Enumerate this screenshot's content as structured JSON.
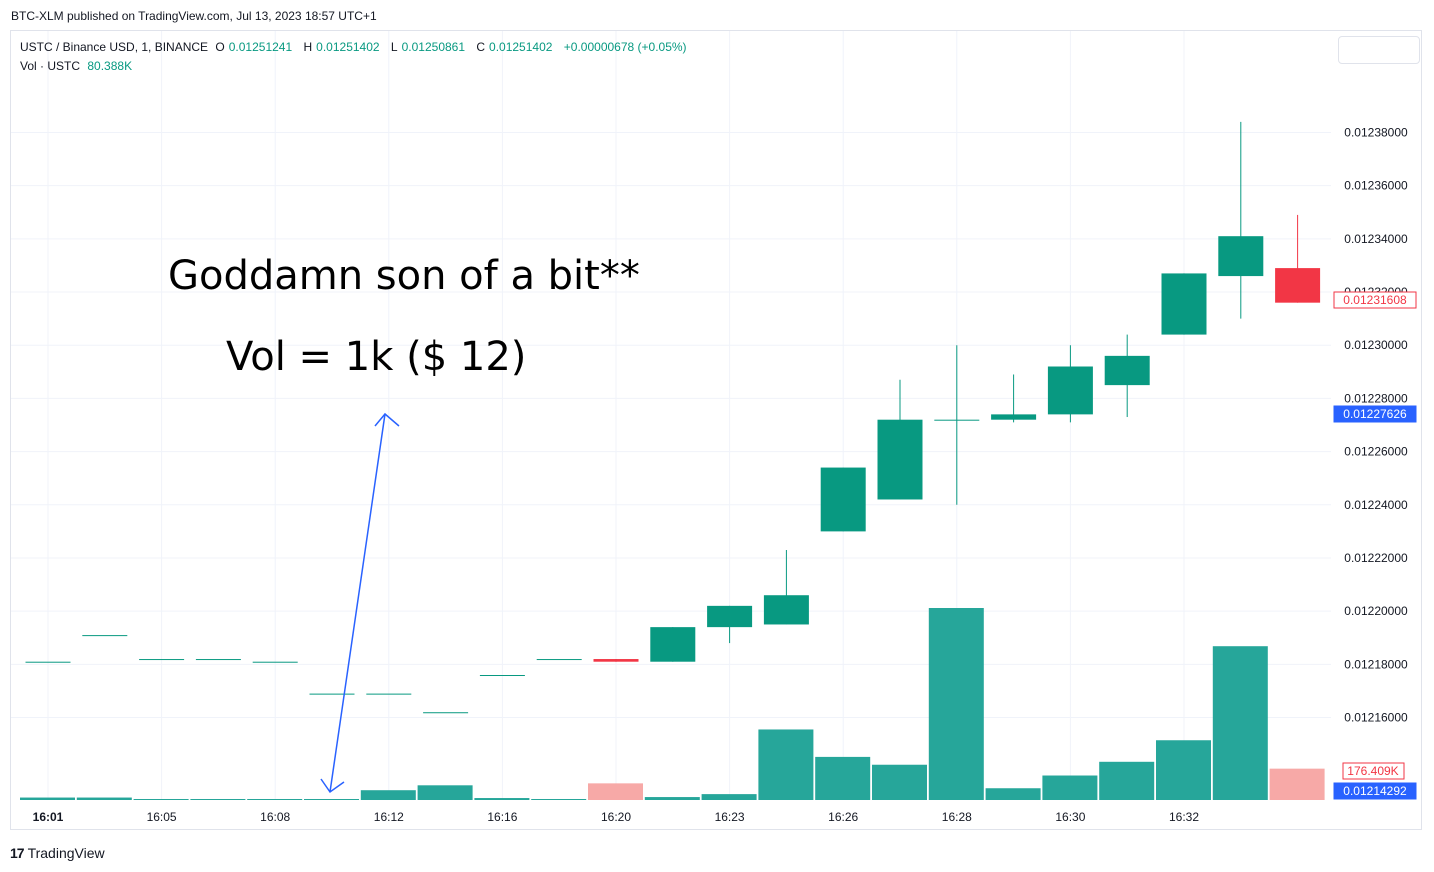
{
  "header": {
    "caption": "BTC-XLM published on TradingView.com, Jul 13, 2023 18:57 UTC+1"
  },
  "legend": {
    "symbol": "USTC / Binance USD, 1, BINANCE",
    "open_label": "O",
    "open": "0.01251241",
    "high_label": "H",
    "high": "0.01251402",
    "low_label": "L",
    "low": "0.01250861",
    "close_label": "C",
    "close": "0.01251402",
    "change": "+0.00000678 (+0.05%)",
    "vol_label": "Vol · USTC",
    "vol_value": "80.388K"
  },
  "annotation": {
    "line1": "Goddamn son of a bit**",
    "line2": "Vol = 1k ($ 12)"
  },
  "footer": {
    "logo": "17",
    "brand": "TradingView"
  },
  "colors": {
    "up": "#089981",
    "down": "#f23645",
    "vol_up": "#26a69a",
    "vol_down": "#f7a9a7",
    "badge_blue": "#2962ff",
    "arrow": "#2962ff",
    "grid": "#f0f3fa"
  },
  "chart_data": {
    "type": "candlestick",
    "y_range": [
      0.012129,
      0.012408
    ],
    "y_ticks": [
      "0.01238000",
      "0.01236000",
      "0.01234000",
      "0.01232000",
      "0.01230000",
      "0.01228000",
      "0.01226000",
      "0.01224000",
      "0.01222000",
      "0.01220000",
      "0.01218000",
      "0.01216000"
    ],
    "x_labels": [
      {
        "index": 0,
        "label": "16:01",
        "bold": true
      },
      {
        "index": 2,
        "label": "16:05"
      },
      {
        "index": 4,
        "label": "16:08"
      },
      {
        "index": 6,
        "label": "16:12"
      },
      {
        "index": 8,
        "label": "16:16"
      },
      {
        "index": 10,
        "label": "16:20"
      },
      {
        "index": 12,
        "label": "16:23"
      },
      {
        "index": 14,
        "label": "16:26"
      },
      {
        "index": 16,
        "label": "16:28"
      },
      {
        "index": 18,
        "label": "16:30"
      },
      {
        "index": 20,
        "label": "16:32"
      }
    ],
    "candles": [
      {
        "o": 0.012181,
        "h": 0.012181,
        "l": 0.012181,
        "c": 0.012181,
        "v": 2.5
      },
      {
        "o": 0.012191,
        "h": 0.012191,
        "l": 0.012191,
        "c": 0.012191,
        "v": 2.5
      },
      {
        "o": 0.012182,
        "h": 0.012182,
        "l": 0.012182,
        "c": 0.012182,
        "v": 0.5
      },
      {
        "o": 0.012182,
        "h": 0.012182,
        "l": 0.012182,
        "c": 0.012182,
        "v": 0.5
      },
      {
        "o": 0.012181,
        "h": 0.012181,
        "l": 0.012181,
        "c": 0.012181,
        "v": 1
      },
      {
        "o": 0.012169,
        "h": 0.012169,
        "l": 0.012169,
        "c": 0.012169,
        "v": 1
      },
      {
        "o": 0.012169,
        "h": 0.012169,
        "l": 0.012169,
        "c": 0.012169,
        "v": 10
      },
      {
        "o": 0.012162,
        "h": 0.012162,
        "l": 0.012162,
        "c": 0.012162,
        "v": 15
      },
      {
        "o": 0.012176,
        "h": 0.012176,
        "l": 0.012176,
        "c": 0.012176,
        "v": 2
      },
      {
        "o": 0.012182,
        "h": 0.012182,
        "l": 0.012182,
        "c": 0.012182,
        "v": 1
      },
      {
        "o": 0.012182,
        "h": 0.012182,
        "l": 0.012181,
        "c": 0.012181,
        "v": 17
      },
      {
        "o": 0.012181,
        "h": 0.012194,
        "l": 0.012181,
        "c": 0.012194,
        "v": 3
      },
      {
        "o": 0.012194,
        "h": 0.012202,
        "l": 0.012188,
        "c": 0.012202,
        "v": 6
      },
      {
        "o": 0.012195,
        "h": 0.012223,
        "l": 0.012195,
        "c": 0.012206,
        "v": 72
      },
      {
        "o": 0.01223,
        "h": 0.012254,
        "l": 0.01223,
        "c": 0.012254,
        "v": 44
      },
      {
        "o": 0.012242,
        "h": 0.012287,
        "l": 0.012242,
        "c": 0.012272,
        "v": 36
      },
      {
        "o": 0.012272,
        "h": 0.0123,
        "l": 0.01224,
        "c": 0.012272,
        "v": 196
      },
      {
        "o": 0.012272,
        "h": 0.012289,
        "l": 0.012271,
        "c": 0.012274,
        "v": 12
      },
      {
        "o": 0.012274,
        "h": 0.0123,
        "l": 0.012271,
        "c": 0.012292,
        "v": 25
      },
      {
        "o": 0.012285,
        "h": 0.012304,
        "l": 0.012273,
        "c": 0.012296,
        "v": 39
      },
      {
        "o": 0.012304,
        "h": 0.012327,
        "l": 0.012304,
        "c": 0.012327,
        "v": 61
      },
      {
        "o": 0.012326,
        "h": 0.012384,
        "l": 0.01231,
        "c": 0.012341,
        "v": 157
      },
      {
        "o": 0.012329,
        "h": 0.012349,
        "l": 0.012316,
        "c": 0.012316,
        "v": 32
      }
    ],
    "volume_max": 196,
    "last_price_badge": "0.01231608",
    "mid_price_badge": "0.01227626",
    "low_price_badge": "0.01214292",
    "volume_badge": "176.409K"
  }
}
